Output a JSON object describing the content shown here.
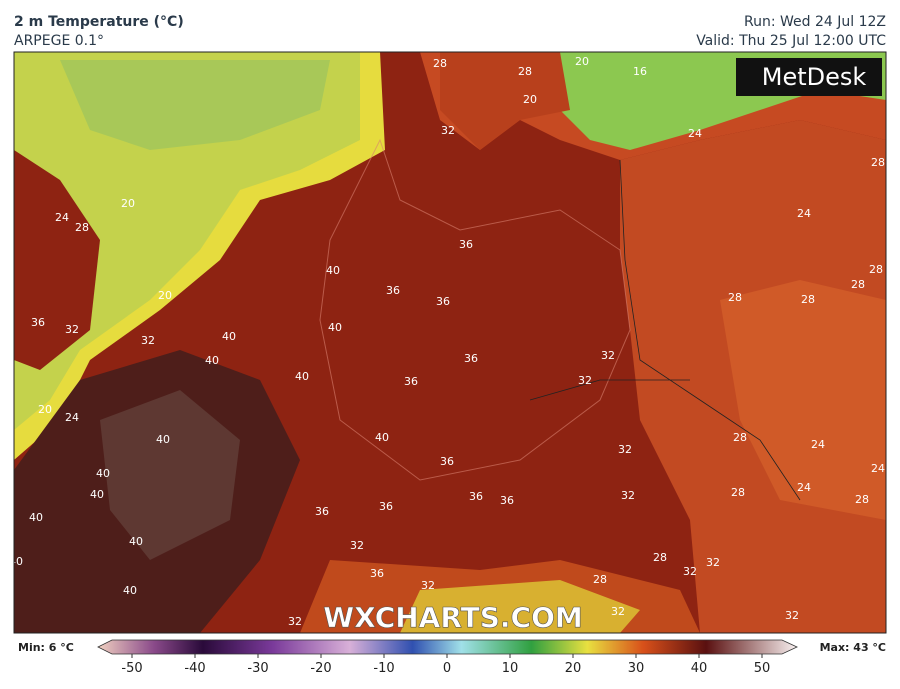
{
  "header": {
    "title": "2 m Temperature (°C)",
    "model": "ARPEGE 0.1°",
    "run": "Run: Wed 24 Jul 12Z",
    "valid": "Valid: Thu 25 Jul 12:00 UTC"
  },
  "logo": "MetDesk",
  "watermark": "WXCHARTS.COM",
  "map": {
    "contour_labels": [
      "20",
      "20",
      "20",
      "20",
      "16",
      "20",
      "24",
      "24",
      "24",
      "24",
      "24",
      "24",
      "24",
      "28",
      "28",
      "28",
      "28",
      "28",
      "28",
      "28",
      "28",
      "28",
      "28",
      "28",
      "28",
      "28",
      "32",
      "32",
      "32",
      "32",
      "32",
      "32",
      "32",
      "32",
      "32",
      "32",
      "32",
      "32",
      "32",
      "32",
      "36",
      "36",
      "36",
      "36",
      "36",
      "36",
      "36",
      "36",
      "36",
      "36",
      "36",
      "36",
      "40",
      "40",
      "40",
      "40",
      "40",
      "40",
      "40",
      "40",
      "40",
      "40",
      "40",
      "40",
      "40",
      "0"
    ]
  },
  "colorbar": {
    "min_label": "Min: 6 °C",
    "max_label": "Max: 43 °C",
    "ticks": [
      -50,
      -40,
      -30,
      -20,
      -10,
      0,
      10,
      20,
      30,
      40,
      50
    ]
  }
}
